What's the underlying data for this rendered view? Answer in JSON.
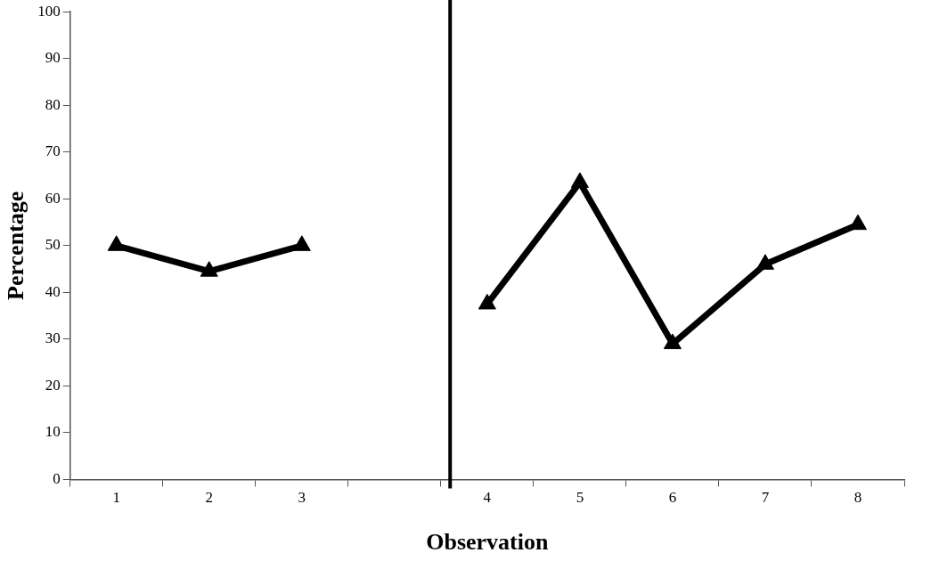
{
  "chart_data": {
    "type": "line",
    "xlabel": "Observation",
    "ylabel": "Percentage",
    "categories": [
      "1",
      "2",
      "3",
      null,
      "4",
      "5",
      "6",
      "7",
      "8"
    ],
    "series": [
      {
        "color": "#000000",
        "values": [
          50,
          44.5,
          50,
          null,
          37.5,
          63.5,
          29,
          46,
          54.5
        ]
      }
    ],
    "ylim": [
      0,
      100
    ],
    "yticks": [
      0,
      10,
      20,
      30,
      40,
      50,
      60,
      70,
      80,
      90,
      100
    ],
    "ref_lines": [
      {
        "axis": "x",
        "value": "4",
        "color": "#000000"
      }
    ],
    "grid": false,
    "legend": false,
    "marker": "triangle",
    "line_style": "solid"
  }
}
